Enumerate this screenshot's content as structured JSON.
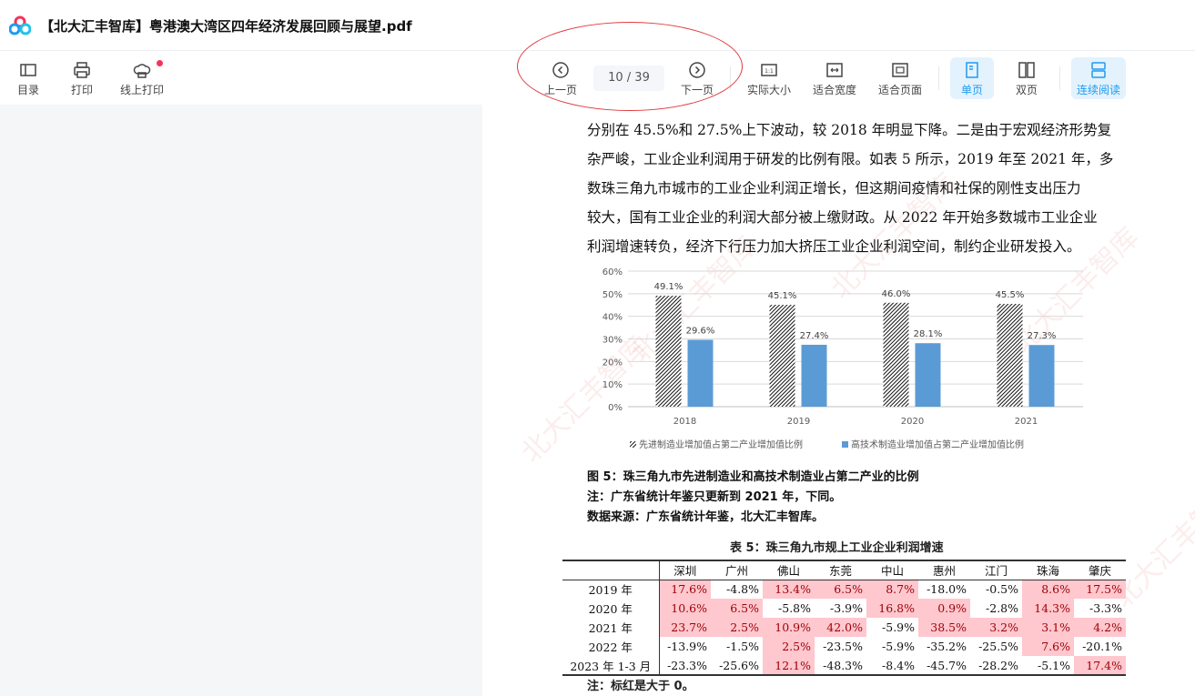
{
  "window": {
    "title": "【北大汇丰智库】粤港澳大湾区四年经济发展回顾与展望.pdf"
  },
  "toolbar": {
    "toc": "目录",
    "print": "打印",
    "online_print": "线上打印",
    "prev": "上一页",
    "page_indicator": "10 / 39",
    "next": "下一页",
    "actual_size": "实际大小",
    "fit_width": "适合宽度",
    "fit_page": "适合页面",
    "single_page": "单页",
    "double_page": "双页",
    "continuous": "连续阅读"
  },
  "colors": {
    "accent": "#1e9bf0",
    "highlight_bg": "#ffc7ce",
    "highlight_text": "#9c0006",
    "bar_blue": "#5b9bd5",
    "annotation": "#e0393e"
  },
  "document": {
    "paragraph": [
      "分别在 45.5%和 27.5%上下波动，较 2018 年明显下降。二是由于宏观经济形势复",
      "杂严峻，工业企业利润用于研发的比例有限。如表 5 所示，2019 年至 2021 年，多",
      "数珠三角九市城市的工业企业利润正增长，但这期间疫情和社保的刚性支出压力",
      "较大，国有工业企业的利润大部分被上缴财政。从 2022 年开始多数城市工业企业",
      "利润增速转负，经济下行压力加大挤压工业企业利润空间，制约企业研发投入。"
    ],
    "figure_caption": "图 5：珠三角九市先进制造业和高技术制造业占第二产业的比例",
    "figure_note": "注：广东省统计年鉴只更新到 2021 年，下同。",
    "figure_source": "数据来源：广东省统计年鉴，北大汇丰智库。",
    "table_caption": "表 5：珠三角九市规上工业企业利润增速",
    "table": {
      "columns": [
        "深圳",
        "广州",
        "佛山",
        "东莞",
        "中山",
        "惠州",
        "江门",
        "珠海",
        "肇庆"
      ],
      "rows": [
        {
          "label": "2019 年",
          "values": [
            "17.6%",
            "-4.8%",
            "13.4%",
            "6.5%",
            "8.7%",
            "-18.0%",
            "-0.5%",
            "8.6%",
            "17.5%"
          ]
        },
        {
          "label": "2020 年",
          "values": [
            "10.6%",
            "6.5%",
            "-5.8%",
            "-3.9%",
            "16.8%",
            "0.9%",
            "-2.8%",
            "14.3%",
            "-3.3%"
          ]
        },
        {
          "label": "2021 年",
          "values": [
            "23.7%",
            "2.5%",
            "10.9%",
            "42.0%",
            "-5.9%",
            "38.5%",
            "3.2%",
            "3.1%",
            "4.2%"
          ]
        },
        {
          "label": "2022 年",
          "values": [
            "-13.9%",
            "-1.5%",
            "2.5%",
            "-23.5%",
            "-5.9%",
            "-35.2%",
            "-25.5%",
            "7.6%",
            "-20.1%"
          ]
        },
        {
          "label": "2023 年 1-3 月",
          "values": [
            "-23.3%",
            "-25.6%",
            "12.1%",
            "-48.3%",
            "-8.4%",
            "-45.7%",
            "-28.2%",
            "-5.1%",
            "17.4%"
          ]
        }
      ]
    },
    "table_note": "注：标红是大于 0。",
    "watermark": "北大汇丰智库"
  },
  "chart_data": {
    "type": "bar",
    "categories": [
      "2018",
      "2019",
      "2020",
      "2021"
    ],
    "series": [
      {
        "name": "先进制造业增加值占第二产业增加值比例",
        "values": [
          49.1,
          45.1,
          46.0,
          45.5
        ],
        "labels": [
          "49.1%",
          "45.1%",
          "46.0%",
          "45.5%"
        ],
        "pattern": "hatched"
      },
      {
        "name": "高技术制造业增加值占第二产业增加值比例",
        "values": [
          29.6,
          27.4,
          28.1,
          27.3
        ],
        "labels": [
          "29.6%",
          "27.4%",
          "28.1%",
          "27.3%"
        ],
        "color": "#5b9bd5"
      }
    ],
    "yticks": [
      "0%",
      "10%",
      "20%",
      "30%",
      "40%",
      "50%",
      "60%"
    ],
    "ylim": [
      0,
      60
    ],
    "grid": true,
    "legend": "bottom"
  }
}
